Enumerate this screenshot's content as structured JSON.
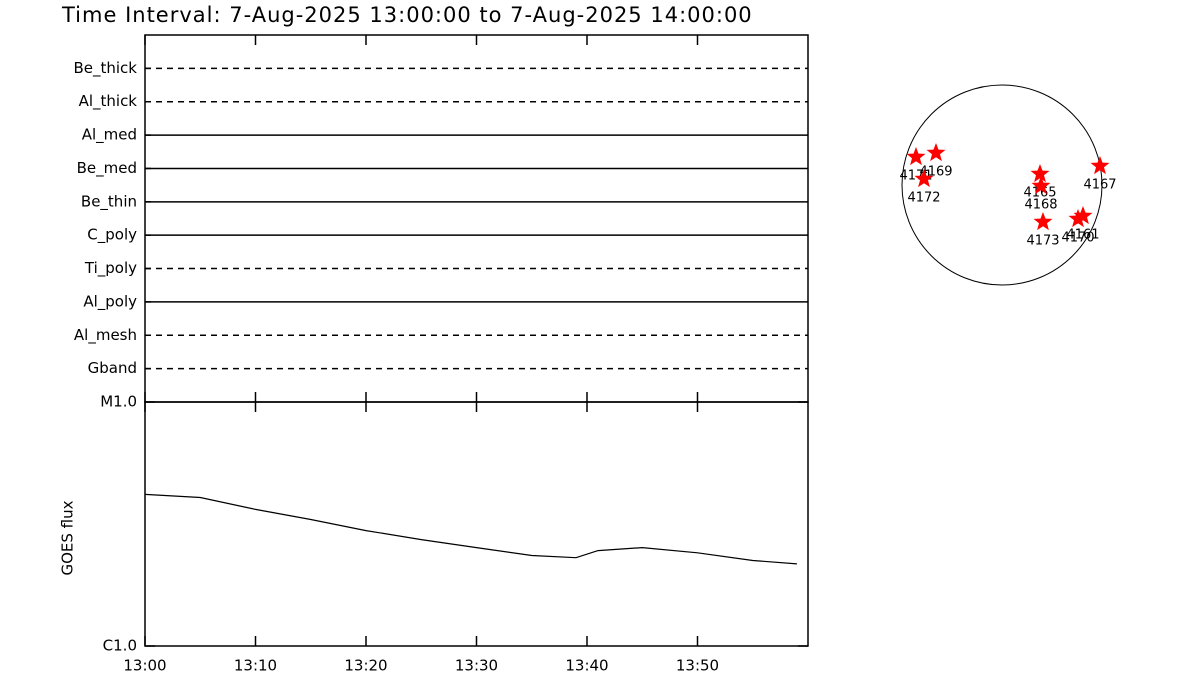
{
  "title": "Time Interval:  7-Aug-2025 13:00:00 to  7-Aug-2025 14:00:00",
  "chart_data": [
    {
      "type": "coverage",
      "categories": [
        "Be_thick",
        "Al_thick",
        "Al_med",
        "Be_med",
        "Be_thin",
        "C_poly",
        "Ti_poly",
        "Al_poly",
        "Al_mesh",
        "Gband"
      ],
      "styles": [
        "dashed",
        "dashed",
        "solid",
        "solid",
        "solid",
        "solid",
        "dashed",
        "solid",
        "dashed",
        "dashed"
      ],
      "xlim": [
        "13:00",
        "14:00"
      ],
      "xticks": [
        "13:00",
        "13:10",
        "13:20",
        "13:30",
        "13:40",
        "13:50"
      ],
      "color": "#000000"
    },
    {
      "type": "line",
      "log_y": true,
      "ylabel": "GOES flux",
      "x": [
        "13:00",
        "13:05",
        "13:10",
        "13:15",
        "13:20",
        "13:25",
        "13:30",
        "13:35",
        "13:39",
        "13:41",
        "13:45",
        "13:50",
        "13:55",
        "13:59"
      ],
      "values": [
        4.18e-06,
        4.06e-06,
        3.63e-06,
        3.3e-06,
        2.97e-06,
        2.73e-06,
        2.53e-06,
        2.35e-06,
        2.3e-06,
        2.46e-06,
        2.53e-06,
        2.41e-06,
        2.24e-06,
        2.17e-06
      ],
      "color": "#000000",
      "xlim": [
        "13:00",
        "14:00"
      ],
      "xticks": [
        "13:00",
        "13:10",
        "13:20",
        "13:30",
        "13:40",
        "13:50"
      ],
      "ylim": [
        1e-06,
        1e-05
      ],
      "yticks": [
        {
          "value": 1e-06,
          "label": "C1.0"
        },
        {
          "value": 1e-05,
          "label": "M1.0"
        }
      ]
    },
    {
      "type": "disk",
      "color": "#ff0000",
      "labels": [
        "4171",
        "4169",
        "4172",
        "4165",
        "4168",
        "4167",
        "4173",
        "4161",
        "4170"
      ],
      "x": [
        -0.86,
        -0.66,
        -0.78,
        0.38,
        0.39,
        0.98,
        0.41,
        0.81,
        0.76
      ],
      "y": [
        0.28,
        0.32,
        0.06,
        0.11,
        -0.01,
        0.19,
        -0.37,
        -0.31,
        -0.34
      ],
      "xlim": [
        -1,
        1
      ],
      "ylim": [
        -1,
        1
      ]
    }
  ]
}
